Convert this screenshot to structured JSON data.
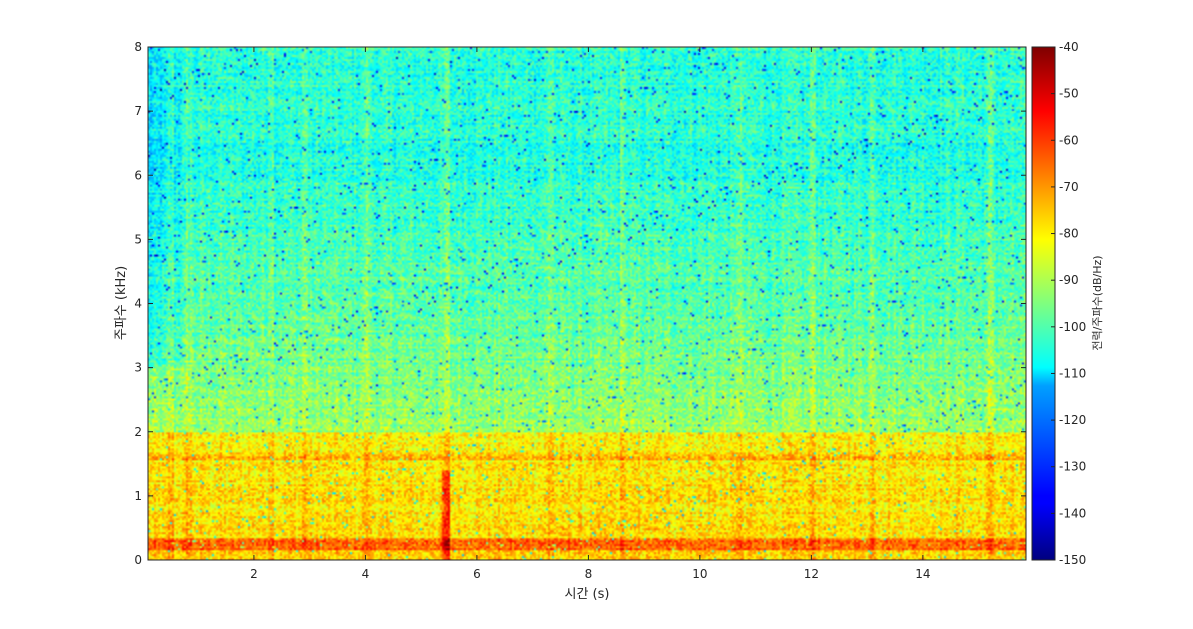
{
  "chart_data": {
    "type": "heatmap",
    "title": "",
    "xlabel": "시간 (s)",
    "ylabel": "주파수 (kHz)",
    "xlim": [
      0.1,
      15.85
    ],
    "ylim": [
      0,
      8
    ],
    "xticks": [
      2,
      4,
      6,
      8,
      10,
      12,
      14
    ],
    "yticks": [
      0,
      1,
      2,
      3,
      4,
      5,
      6,
      7,
      8
    ],
    "colormap": "jet",
    "colorbar": {
      "label": "전력/주파수(dB/Hz)",
      "range": [
        -150,
        -40
      ],
      "ticks": [
        -40,
        -50,
        -60,
        -70,
        -80,
        -90,
        -100,
        -110,
        -120,
        -130,
        -140,
        -150
      ],
      "location": "right"
    },
    "grid": false,
    "features": {
      "low_band_dB": -80,
      "mid_band_dB": -97,
      "high_band_dB": -108,
      "strong_line_khz": 0.25,
      "harmonic_line_khz": 1.6,
      "vertical_transients_s": [
        0.5,
        0.8,
        2.3,
        2.9,
        4.0,
        5.45,
        7.3,
        8.6,
        10.7,
        12.0,
        13.1,
        15.2
      ]
    }
  }
}
